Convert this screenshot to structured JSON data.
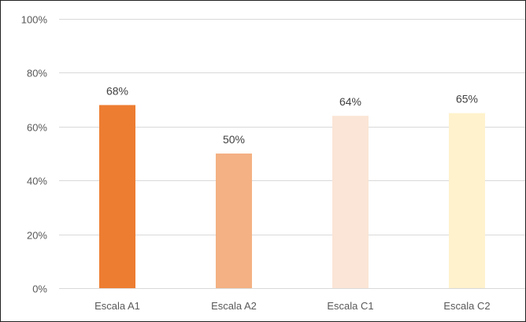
{
  "chart_data": {
    "type": "bar",
    "title": "",
    "xlabel": "",
    "ylabel": "",
    "categories": [
      "Escala A1",
      "Escala A2",
      "Escala C1",
      "Escala C2"
    ],
    "values": [
      68,
      50,
      64,
      65
    ],
    "value_labels": [
      "68%",
      "50%",
      "64%",
      "65%"
    ],
    "bar_colors": [
      "#ed7d31",
      "#f4b183",
      "#fbe5d6",
      "#fff2cc"
    ],
    "ylim": [
      0,
      100
    ],
    "yticks": [
      0,
      20,
      40,
      60,
      80,
      100
    ],
    "ytick_labels": [
      "0%",
      "20%",
      "40%",
      "60%",
      "80%",
      "100%"
    ],
    "grid": true,
    "legend": "none"
  }
}
